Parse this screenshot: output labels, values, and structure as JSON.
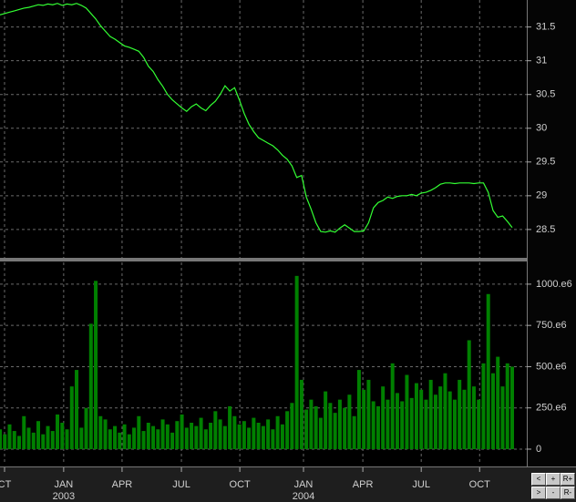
{
  "chart_data": [
    {
      "type": "line",
      "color": "#33ff33",
      "grid": true,
      "categories": [
        null,
        null,
        null,
        null,
        null,
        null,
        null,
        null,
        null,
        null,
        null,
        null,
        null,
        null,
        null,
        null,
        null,
        null,
        null,
        null,
        null,
        null,
        null,
        null,
        null,
        null,
        null,
        null,
        null,
        null,
        null,
        null,
        null,
        null,
        null,
        null,
        null,
        null,
        null,
        null,
        null,
        null,
        null,
        null,
        null,
        null,
        null,
        null,
        null,
        null,
        null,
        null,
        null,
        null,
        null,
        null,
        null,
        null,
        null,
        null,
        null,
        null,
        null,
        null,
        null,
        null,
        null,
        null,
        null,
        null,
        null,
        null,
        null,
        null,
        null,
        null,
        null,
        null,
        null,
        null,
        null,
        null,
        null,
        null,
        null,
        null,
        null,
        null,
        null,
        null,
        null,
        null,
        null,
        null,
        null,
        null,
        null,
        null,
        null,
        null,
        null,
        null,
        null,
        null,
        null,
        null,
        null,
        null
      ],
      "values": [
        31.68,
        31.7,
        31.72,
        31.74,
        31.76,
        31.78,
        31.79,
        31.81,
        31.83,
        31.82,
        31.84,
        31.83,
        31.85,
        31.82,
        31.84,
        31.83,
        31.85,
        31.82,
        31.78,
        31.7,
        31.62,
        31.52,
        31.44,
        31.36,
        31.32,
        31.27,
        31.22,
        31.2,
        31.17,
        31.14,
        31.05,
        30.92,
        30.84,
        30.72,
        30.62,
        30.5,
        30.42,
        30.36,
        30.3,
        30.25,
        30.32,
        30.36,
        30.3,
        30.26,
        30.34,
        30.4,
        30.5,
        30.63,
        30.55,
        30.6,
        30.42,
        30.22,
        30.06,
        29.95,
        29.86,
        29.82,
        29.78,
        29.74,
        29.68,
        29.6,
        29.54,
        29.44,
        29.27,
        29.3,
        28.98,
        28.8,
        28.6,
        28.47,
        28.46,
        28.48,
        28.46,
        28.52,
        28.57,
        28.52,
        28.47,
        28.47,
        28.48,
        28.6,
        28.82,
        28.9,
        28.93,
        28.98,
        28.96,
        28.99,
        29.0,
        29.0,
        29.02,
        29.0,
        29.04,
        29.05,
        29.08,
        29.12,
        29.17,
        29.19,
        29.19,
        29.18,
        29.19,
        29.19,
        29.19,
        29.18,
        29.19,
        29.19,
        29.05,
        28.78,
        28.68,
        28.7,
        28.62,
        28.53
      ],
      "ylim": [
        28.08,
        31.9
      ],
      "yticks": [
        28.5,
        29,
        29.5,
        30,
        30.5,
        31,
        31.5
      ]
    },
    {
      "type": "bar",
      "color": "#008000",
      "grid": true,
      "categories": [
        null,
        null,
        null,
        null,
        null,
        null,
        null,
        null,
        null,
        null,
        null,
        null,
        null,
        null,
        null,
        null,
        null,
        null,
        null,
        null,
        null,
        null,
        null,
        null,
        null,
        null,
        null,
        null,
        null,
        null,
        null,
        null,
        null,
        null,
        null,
        null,
        null,
        null,
        null,
        null,
        null,
        null,
        null,
        null,
        null,
        null,
        null,
        null,
        null,
        null,
        null,
        null,
        null,
        null,
        null,
        null,
        null,
        null,
        null,
        null,
        null,
        null,
        null,
        null,
        null,
        null,
        null,
        null,
        null,
        null,
        null,
        null,
        null,
        null,
        null,
        null,
        null,
        null,
        null,
        null,
        null,
        null,
        null,
        null,
        null,
        null,
        null,
        null,
        null,
        null,
        null,
        null,
        null,
        null,
        null,
        null,
        null,
        null,
        null,
        null,
        null,
        null,
        null,
        null,
        null,
        null,
        null,
        null
      ],
      "values": [
        120000000.0,
        90000000.0,
        150000000.0,
        110000000.0,
        80000000.0,
        200000000.0,
        130000000.0,
        100000000.0,
        170000000.0,
        90000000.0,
        140000000.0,
        110000000.0,
        210000000.0,
        160000000.0,
        120000000.0,
        380000000.0,
        480000000.0,
        130000000.0,
        250000000.0,
        760000000.0,
        1020000000.0,
        200000000.0,
        180000000.0,
        120000000.0,
        140000000.0,
        100000000.0,
        150000000.0,
        90000000.0,
        130000000.0,
        200000000.0,
        110000000.0,
        160000000.0,
        140000000.0,
        120000000.0,
        180000000.0,
        150000000.0,
        100000000.0,
        170000000.0,
        210000000.0,
        130000000.0,
        160000000.0,
        140000000.0,
        190000000.0,
        120000000.0,
        160000000.0,
        230000000.0,
        180000000.0,
        140000000.0,
        260000000.0,
        200000000.0,
        150000000.0,
        170000000.0,
        130000000.0,
        190000000.0,
        160000000.0,
        140000000.0,
        180000000.0,
        120000000.0,
        200000000.0,
        150000000.0,
        230000000.0,
        280000000.0,
        1050000000.0,
        420000000.0,
        240000000.0,
        300000000.0,
        260000000.0,
        190000000.0,
        350000000.0,
        280000000.0,
        220000000.0,
        300000000.0,
        250000000.0,
        330000000.0,
        200000000.0,
        480000000.0,
        360000000.0,
        420000000.0,
        290000000.0,
        260000000.0,
        380000000.0,
        300000000.0,
        520000000.0,
        340000000.0,
        290000000.0,
        450000000.0,
        310000000.0,
        400000000.0,
        360000000.0,
        300000000.0,
        420000000.0,
        330000000.0,
        380000000.0,
        460000000.0,
        350000000.0,
        300000000.0,
        420000000.0,
        360000000.0,
        660000000.0,
        380000000.0,
        300000000.0,
        520000000.0,
        940000000.0,
        460000000.0,
        560000000.0,
        380000000.0,
        520000000.0,
        500000000.0
      ],
      "ylim": [
        -94000000.0,
        1132000000.0
      ],
      "yticks": [
        0,
        {
          "value": 250000000.0,
          "label": "250.e6"
        },
        {
          "value": 500000000.0,
          "label": "500.e6"
        },
        {
          "value": 750000000.0,
          "label": "750.e6"
        },
        {
          "value": 1000000000.0,
          "label": "1000.e6"
        }
      ],
      "xlim": [
        0,
        110.05
      ],
      "xticks": [
        {
          "value": 0.95,
          "label": "CT"
        },
        {
          "value": 13.3,
          "label": "JAN"
        },
        {
          "value": 25.5,
          "label": "APR"
        },
        {
          "value": 37.9,
          "label": "JUL"
        },
        {
          "value": 50.1,
          "label": "OCT"
        },
        {
          "value": 63.4,
          "label": "JAN"
        },
        {
          "value": 75.8,
          "label": "APR"
        },
        {
          "value": 88.0,
          "label": "JUL"
        },
        {
          "value": 100.2,
          "label": "OCT"
        }
      ],
      "year_labels": [
        {
          "value": 13.3,
          "label": "2003"
        },
        {
          "value": 63.4,
          "label": "2004"
        }
      ]
    }
  ],
  "controls": [
    "<",
    "+",
    "R+",
    ">",
    "-",
    "R-"
  ]
}
